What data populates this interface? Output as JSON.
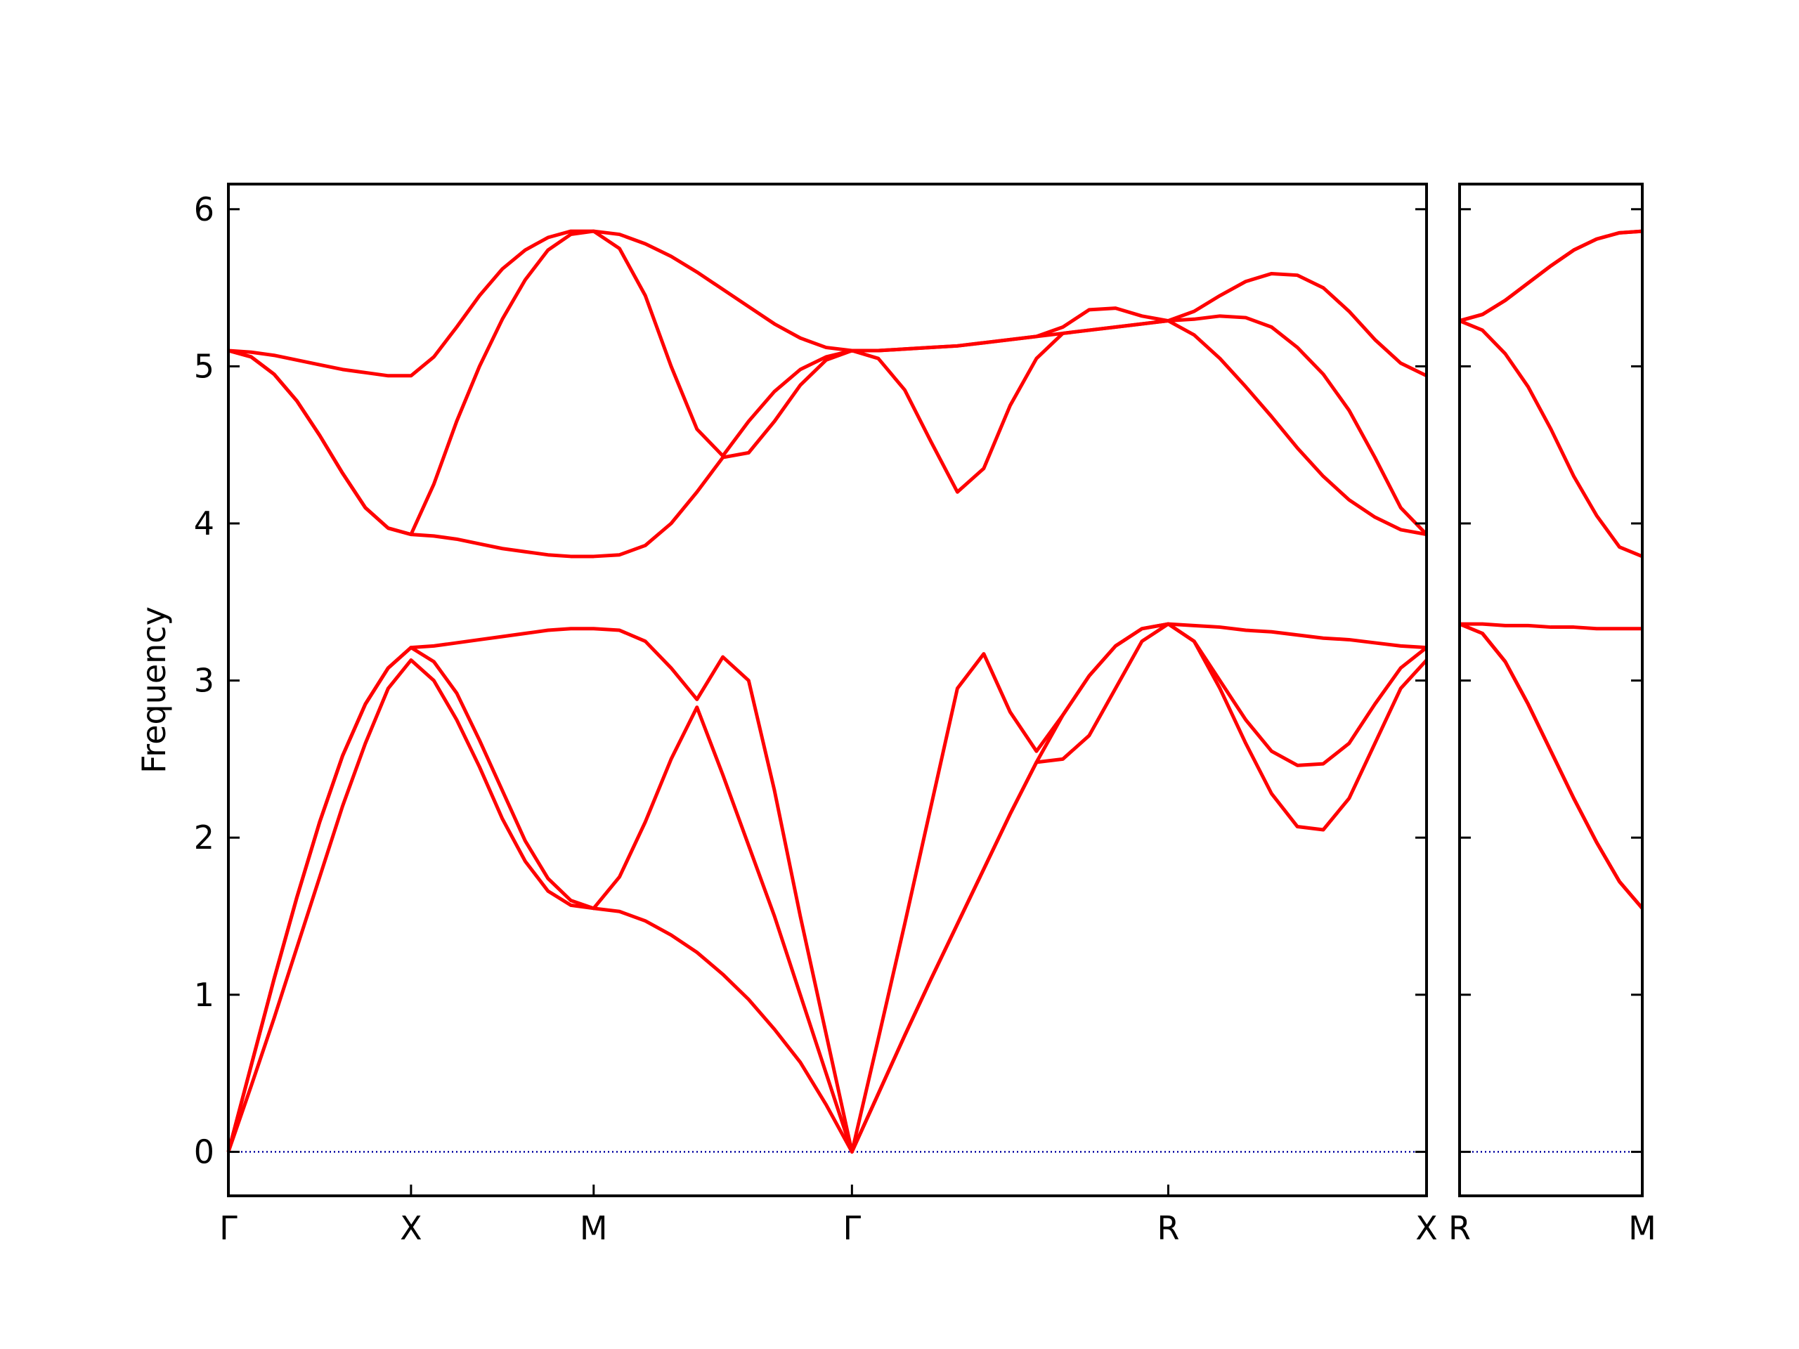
{
  "chart_data": [
    {
      "type": "line",
      "ylabel": "Frequency",
      "x": [
        0,
        0.0625,
        0.125,
        0.1875,
        0.25,
        0.3125,
        0.375,
        0.4375,
        0.5,
        0.5625,
        0.625,
        0.6875,
        0.75,
        0.8125,
        0.875,
        0.9375,
        1.0,
        1.0707,
        1.1414,
        1.2121,
        1.2828,
        1.3536,
        1.4243,
        1.495,
        1.5657,
        1.6364,
        1.7071,
        1.7793,
        1.8515,
        1.9236,
        1.9958,
        2.068,
        2.1401,
        2.2123,
        2.2845,
        2.3566,
        2.4288,
        2.501,
        2.5731,
        2.6438,
        2.7145,
        2.7852,
        2.8559,
        2.9267,
        2.9974,
        3.0681,
        3.1388,
        3.2095,
        3.2802
      ],
      "xlim": [
        0,
        3.2802
      ],
      "xticks": [
        {
          "value": 0,
          "label": "Γ"
        },
        {
          "value": 0.5,
          "label": "X"
        },
        {
          "value": 1.0,
          "label": "M"
        },
        {
          "value": 1.7071,
          "label": "Γ"
        },
        {
          "value": 2.5731,
          "label": "R"
        },
        {
          "value": 3.2802,
          "label": "X"
        }
      ],
      "ylim": [
        -0.28,
        6.16
      ],
      "yticks": [
        0,
        1,
        2,
        3,
        4,
        5,
        6
      ],
      "show_ytick_labels": true,
      "reference_line": {
        "value": 0,
        "color": "#0000a0"
      },
      "series": [
        {
          "color": "#ff0000",
          "values": [
            0,
            0.42,
            0.85,
            1.3,
            1.75,
            2.2,
            2.6,
            2.95,
            3.13,
            3.0,
            2.75,
            2.45,
            2.12,
            1.85,
            1.66,
            1.57,
            1.55,
            1.53,
            1.47,
            1.38,
            1.27,
            1.13,
            0.97,
            0.78,
            0.57,
            0.3,
            0,
            0.37,
            0.74,
            1.1,
            1.45,
            1.8,
            2.15,
            2.48,
            2.5,
            2.65,
            2.95,
            3.25,
            3.36,
            3.25,
            2.95,
            2.6,
            2.28,
            2.07,
            2.05,
            2.25,
            2.6,
            2.95,
            3.13
          ]
        },
        {
          "color": "#ff0000",
          "values": [
            0,
            0.55,
            1.1,
            1.62,
            2.1,
            2.52,
            2.85,
            3.08,
            3.21,
            3.12,
            2.92,
            2.62,
            2.3,
            1.98,
            1.74,
            1.6,
            1.55,
            1.75,
            2.1,
            2.5,
            2.83,
            2.4,
            1.95,
            1.5,
            1.0,
            0.5,
            0,
            0.37,
            0.74,
            1.1,
            1.45,
            1.8,
            2.15,
            2.48,
            2.78,
            3.03,
            3.22,
            3.33,
            3.36,
            3.25,
            3.0,
            2.75,
            2.55,
            2.46,
            2.47,
            2.6,
            2.85,
            3.08,
            3.21
          ]
        },
        {
          "color": "#ff0000",
          "values": [
            0,
            0.55,
            1.1,
            1.62,
            2.1,
            2.52,
            2.85,
            3.08,
            3.21,
            3.22,
            3.24,
            3.26,
            3.28,
            3.3,
            3.32,
            3.33,
            3.33,
            3.32,
            3.25,
            3.08,
            2.88,
            3.15,
            3.0,
            2.3,
            1.5,
            0.75,
            0,
            0.72,
            1.45,
            2.2,
            2.95,
            3.17,
            2.8,
            2.55,
            2.78,
            3.03,
            3.22,
            3.33,
            3.36,
            3.35,
            3.34,
            3.32,
            3.31,
            3.29,
            3.27,
            3.26,
            3.24,
            3.22,
            3.21
          ]
        },
        {
          "color": "#ff0000",
          "values": [
            5.1,
            5.06,
            4.95,
            4.78,
            4.56,
            4.32,
            4.1,
            3.97,
            3.93,
            3.92,
            3.9,
            3.87,
            3.84,
            3.82,
            3.8,
            3.79,
            3.79,
            3.8,
            3.86,
            4.0,
            4.2,
            4.42,
            4.45,
            4.65,
            4.88,
            5.04,
            5.1,
            5.05,
            4.85,
            4.52,
            4.2,
            4.35,
            4.75,
            5.05,
            5.21,
            5.23,
            5.25,
            5.27,
            5.29,
            5.2,
            5.05,
            4.87,
            4.68,
            4.48,
            4.3,
            4.15,
            4.04,
            3.96,
            3.93
          ]
        },
        {
          "color": "#ff0000",
          "values": [
            5.1,
            5.06,
            4.95,
            4.78,
            4.56,
            4.32,
            4.1,
            3.97,
            3.93,
            4.25,
            4.65,
            5.0,
            5.3,
            5.55,
            5.74,
            5.84,
            5.86,
            5.75,
            5.45,
            5.0,
            4.6,
            4.43,
            4.65,
            4.84,
            4.98,
            5.06,
            5.1,
            5.1,
            5.11,
            5.12,
            5.13,
            5.15,
            5.17,
            5.19,
            5.21,
            5.23,
            5.25,
            5.27,
            5.29,
            5.3,
            5.32,
            5.31,
            5.25,
            5.12,
            4.95,
            4.72,
            4.42,
            4.1,
            3.93
          ]
        },
        {
          "color": "#ff0000",
          "values": [
            5.1,
            5.09,
            5.07,
            5.04,
            5.01,
            4.98,
            4.96,
            4.94,
            4.94,
            5.06,
            5.25,
            5.45,
            5.62,
            5.74,
            5.82,
            5.86,
            5.86,
            5.84,
            5.78,
            5.7,
            5.6,
            5.49,
            5.38,
            5.27,
            5.18,
            5.12,
            5.1,
            5.1,
            5.11,
            5.12,
            5.13,
            5.15,
            5.17,
            5.19,
            5.25,
            5.36,
            5.37,
            5.32,
            5.29,
            5.35,
            5.45,
            5.54,
            5.59,
            5.58,
            5.5,
            5.35,
            5.17,
            5.02,
            4.94
          ]
        }
      ]
    },
    {
      "type": "line",
      "x": [
        0,
        0.0625,
        0.125,
        0.1875,
        0.25,
        0.3125,
        0.375,
        0.4375,
        0.5
      ],
      "xlim": [
        0,
        0.5
      ],
      "xticks": [
        {
          "value": 0,
          "label": "R"
        },
        {
          "value": 0.5,
          "label": "M"
        }
      ],
      "ylim": [
        -0.28,
        6.16
      ],
      "yticks": [
        0,
        1,
        2,
        3,
        4,
        5,
        6
      ],
      "show_ytick_labels": false,
      "reference_line": {
        "value": 0,
        "color": "#0000a0"
      },
      "series": [
        {
          "color": "#ff0000",
          "values": [
            3.36,
            3.3,
            3.12,
            2.85,
            2.55,
            2.25,
            1.97,
            1.72,
            1.55
          ]
        },
        {
          "color": "#ff0000",
          "values": [
            3.36,
            3.3,
            3.12,
            2.85,
            2.55,
            2.25,
            1.97,
            1.72,
            1.55
          ]
        },
        {
          "color": "#ff0000",
          "values": [
            3.36,
            3.36,
            3.35,
            3.35,
            3.34,
            3.34,
            3.33,
            3.33,
            3.33
          ]
        },
        {
          "color": "#ff0000",
          "values": [
            5.29,
            5.23,
            5.08,
            4.87,
            4.6,
            4.3,
            4.05,
            3.85,
            3.79
          ]
        },
        {
          "color": "#ff0000",
          "values": [
            5.29,
            5.33,
            5.42,
            5.53,
            5.64,
            5.74,
            5.81,
            5.85,
            5.86
          ]
        },
        {
          "color": "#ff0000",
          "values": [
            5.29,
            5.33,
            5.42,
            5.53,
            5.64,
            5.74,
            5.81,
            5.85,
            5.86
          ]
        }
      ]
    }
  ]
}
